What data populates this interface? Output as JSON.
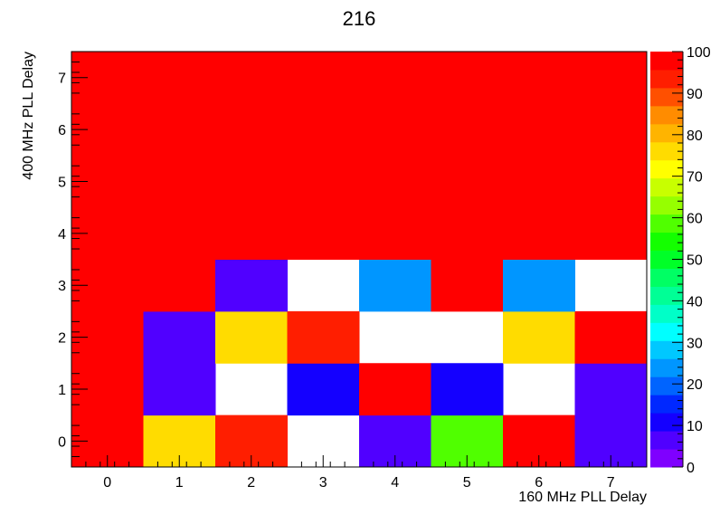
{
  "chart_data": {
    "type": "heatmap",
    "title": "216",
    "xlabel": "160 MHz PLL Delay",
    "ylabel": "400 MHz PLL Delay",
    "x_categories": [
      "0",
      "1",
      "2",
      "3",
      "4",
      "5",
      "6",
      "7"
    ],
    "y_categories": [
      "0",
      "1",
      "2",
      "3",
      "4",
      "5",
      "6",
      "7"
    ],
    "zlim": [
      0,
      100
    ],
    "colorbar_ticks": [
      "0",
      "10",
      "20",
      "30",
      "40",
      "50",
      "60",
      "70",
      "80",
      "90",
      "100"
    ],
    "z": [
      [
        100,
        75,
        92,
        null,
        5,
        60,
        100,
        5
      ],
      [
        100,
        5,
        null,
        12,
        100,
        12,
        null,
        5
      ],
      [
        100,
        5,
        75,
        92,
        null,
        null,
        75,
        100
      ],
      [
        100,
        100,
        5,
        null,
        22,
        100,
        22,
        null
      ],
      [
        100,
        100,
        100,
        100,
        100,
        100,
        100,
        100
      ],
      [
        100,
        100,
        100,
        100,
        100,
        100,
        100,
        100
      ],
      [
        100,
        100,
        100,
        100,
        100,
        100,
        100,
        100
      ],
      [
        100,
        100,
        100,
        100,
        100,
        100,
        100,
        100
      ]
    ],
    "palette": [
      "#7f00ff",
      "#5000ff",
      "#1400ff",
      "#0028ff",
      "#0064ff",
      "#0096ff",
      "#00c8ff",
      "#00ffff",
      "#00ffc8",
      "#00ff96",
      "#00ff64",
      "#00ff28",
      "#14ff00",
      "#50ff00",
      "#96ff00",
      "#c8ff00",
      "#ffff00",
      "#ffdc00",
      "#ffb400",
      "#ff8c00",
      "#ff5000",
      "#ff1e00",
      "#ff0000"
    ]
  }
}
